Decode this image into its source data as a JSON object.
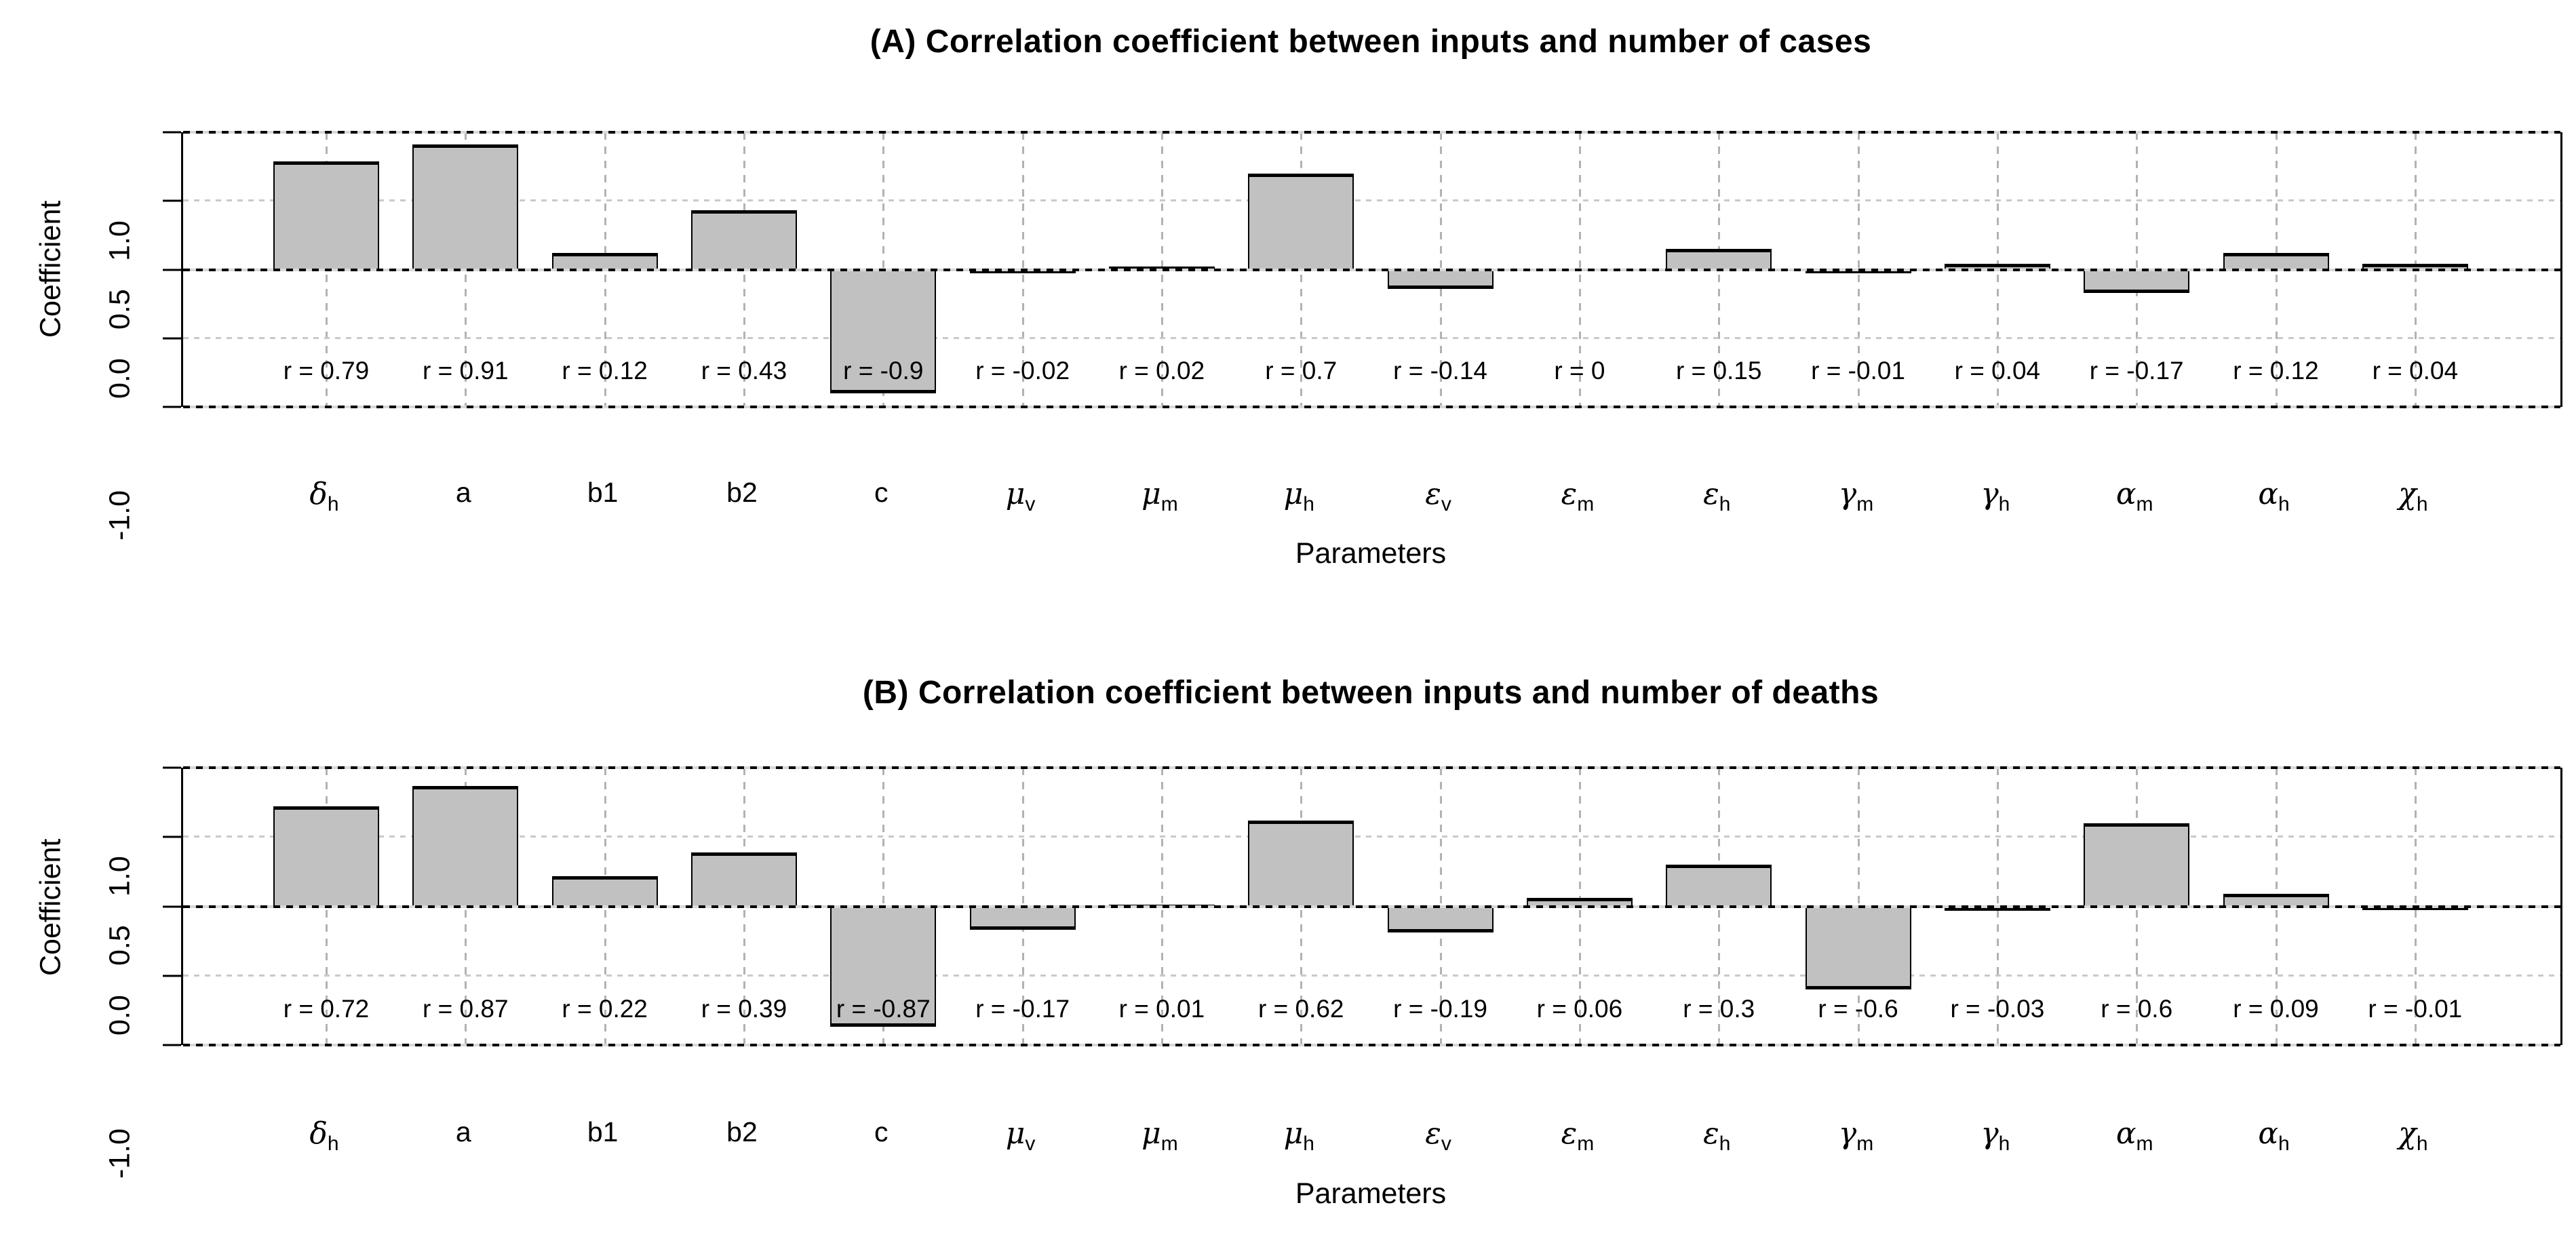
{
  "colors": {
    "bar_fill": "#c1c1c1",
    "bar_border": "#000000",
    "grid_major": "#000000",
    "grid_minor": "#c9c9c9",
    "grid_vertical": "#b2b2b2",
    "background": "#ffffff"
  },
  "chart_data": [
    {
      "type": "bar",
      "title": "(A) Correlation coefficient between inputs and number of cases",
      "xlabel": "Parameters",
      "ylabel": "Coefficient",
      "ylim": [
        -1,
        1
      ],
      "grid": true,
      "yticks": [
        1.0,
        0.5,
        0.0,
        -0.5,
        -1.0
      ],
      "ytick_labels": [
        "1.0",
        "0.5",
        "0.0",
        "",
        "-1.0"
      ],
      "categories": [
        {
          "base": "δ",
          "sub": "h",
          "greek": true
        },
        {
          "base": "a"
        },
        {
          "base": "b1"
        },
        {
          "base": "b2"
        },
        {
          "base": "c"
        },
        {
          "base": "μ",
          "sub": "v",
          "greek": true
        },
        {
          "base": "μ",
          "sub": "m",
          "greek": true
        },
        {
          "base": "μ",
          "sub": "h",
          "greek": true
        },
        {
          "base": "ε",
          "sub": "v",
          "greek": true
        },
        {
          "base": "ε",
          "sub": "m",
          "greek": true
        },
        {
          "base": "ε",
          "sub": "h",
          "greek": true
        },
        {
          "base": "γ",
          "sub": "m",
          "greek": true
        },
        {
          "base": "γ",
          "sub": "h",
          "greek": true
        },
        {
          "base": "α",
          "sub": "m",
          "greek": true
        },
        {
          "base": "α",
          "sub": "h",
          "greek": true
        },
        {
          "base": "χ",
          "sub": "h",
          "greek": true
        }
      ],
      "values": [
        0.79,
        0.91,
        0.12,
        0.43,
        -0.9,
        -0.02,
        0.02,
        0.7,
        -0.14,
        0,
        0.15,
        -0.01,
        0.04,
        -0.17,
        0.12,
        0.04
      ],
      "bar_labels": [
        "r = 0.79",
        "r = 0.91",
        "r = 0.12",
        "r = 0.43",
        "r = -0.9",
        "r = -0.02",
        "r = 0.02",
        "r = 0.7",
        "r = -0.14",
        "r = 0",
        "r = 0.15",
        "r = -0.01",
        "r = 0.04",
        "r = -0.17",
        "r = 0.12",
        "r = 0.04"
      ]
    },
    {
      "type": "bar",
      "title": "(B) Correlation coefficient between inputs and number of deaths",
      "xlabel": "Parameters",
      "ylabel": "Coefficient",
      "ylim": [
        -1,
        1
      ],
      "grid": true,
      "yticks": [
        1.0,
        0.5,
        0.0,
        -0.5,
        -1.0
      ],
      "ytick_labels": [
        "1.0",
        "0.5",
        "0.0",
        "",
        "-1.0"
      ],
      "categories": [
        {
          "base": "δ",
          "sub": "h",
          "greek": true
        },
        {
          "base": "a"
        },
        {
          "base": "b1"
        },
        {
          "base": "b2"
        },
        {
          "base": "c"
        },
        {
          "base": "μ",
          "sub": "v",
          "greek": true
        },
        {
          "base": "μ",
          "sub": "m",
          "greek": true
        },
        {
          "base": "μ",
          "sub": "h",
          "greek": true
        },
        {
          "base": "ε",
          "sub": "v",
          "greek": true
        },
        {
          "base": "ε",
          "sub": "m",
          "greek": true
        },
        {
          "base": "ε",
          "sub": "h",
          "greek": true
        },
        {
          "base": "γ",
          "sub": "m",
          "greek": true
        },
        {
          "base": "γ",
          "sub": "h",
          "greek": true
        },
        {
          "base": "α",
          "sub": "m",
          "greek": true
        },
        {
          "base": "α",
          "sub": "h",
          "greek": true
        },
        {
          "base": "χ",
          "sub": "h",
          "greek": true
        }
      ],
      "values": [
        0.72,
        0.87,
        0.22,
        0.39,
        -0.87,
        -0.17,
        0.01,
        0.62,
        -0.19,
        0.06,
        0.3,
        -0.6,
        -0.03,
        0.6,
        0.09,
        -0.01
      ],
      "bar_labels": [
        "r = 0.72",
        "r = 0.87",
        "r = 0.22",
        "r = 0.39",
        "r = -0.87",
        "r = -0.17",
        "r = 0.01",
        "r = 0.62",
        "r = -0.19",
        "r = 0.06",
        "r = 0.3",
        "r = -0.6",
        "r = -0.03",
        "r = 0.6",
        "r = 0.09",
        "r = -0.01"
      ]
    }
  ]
}
